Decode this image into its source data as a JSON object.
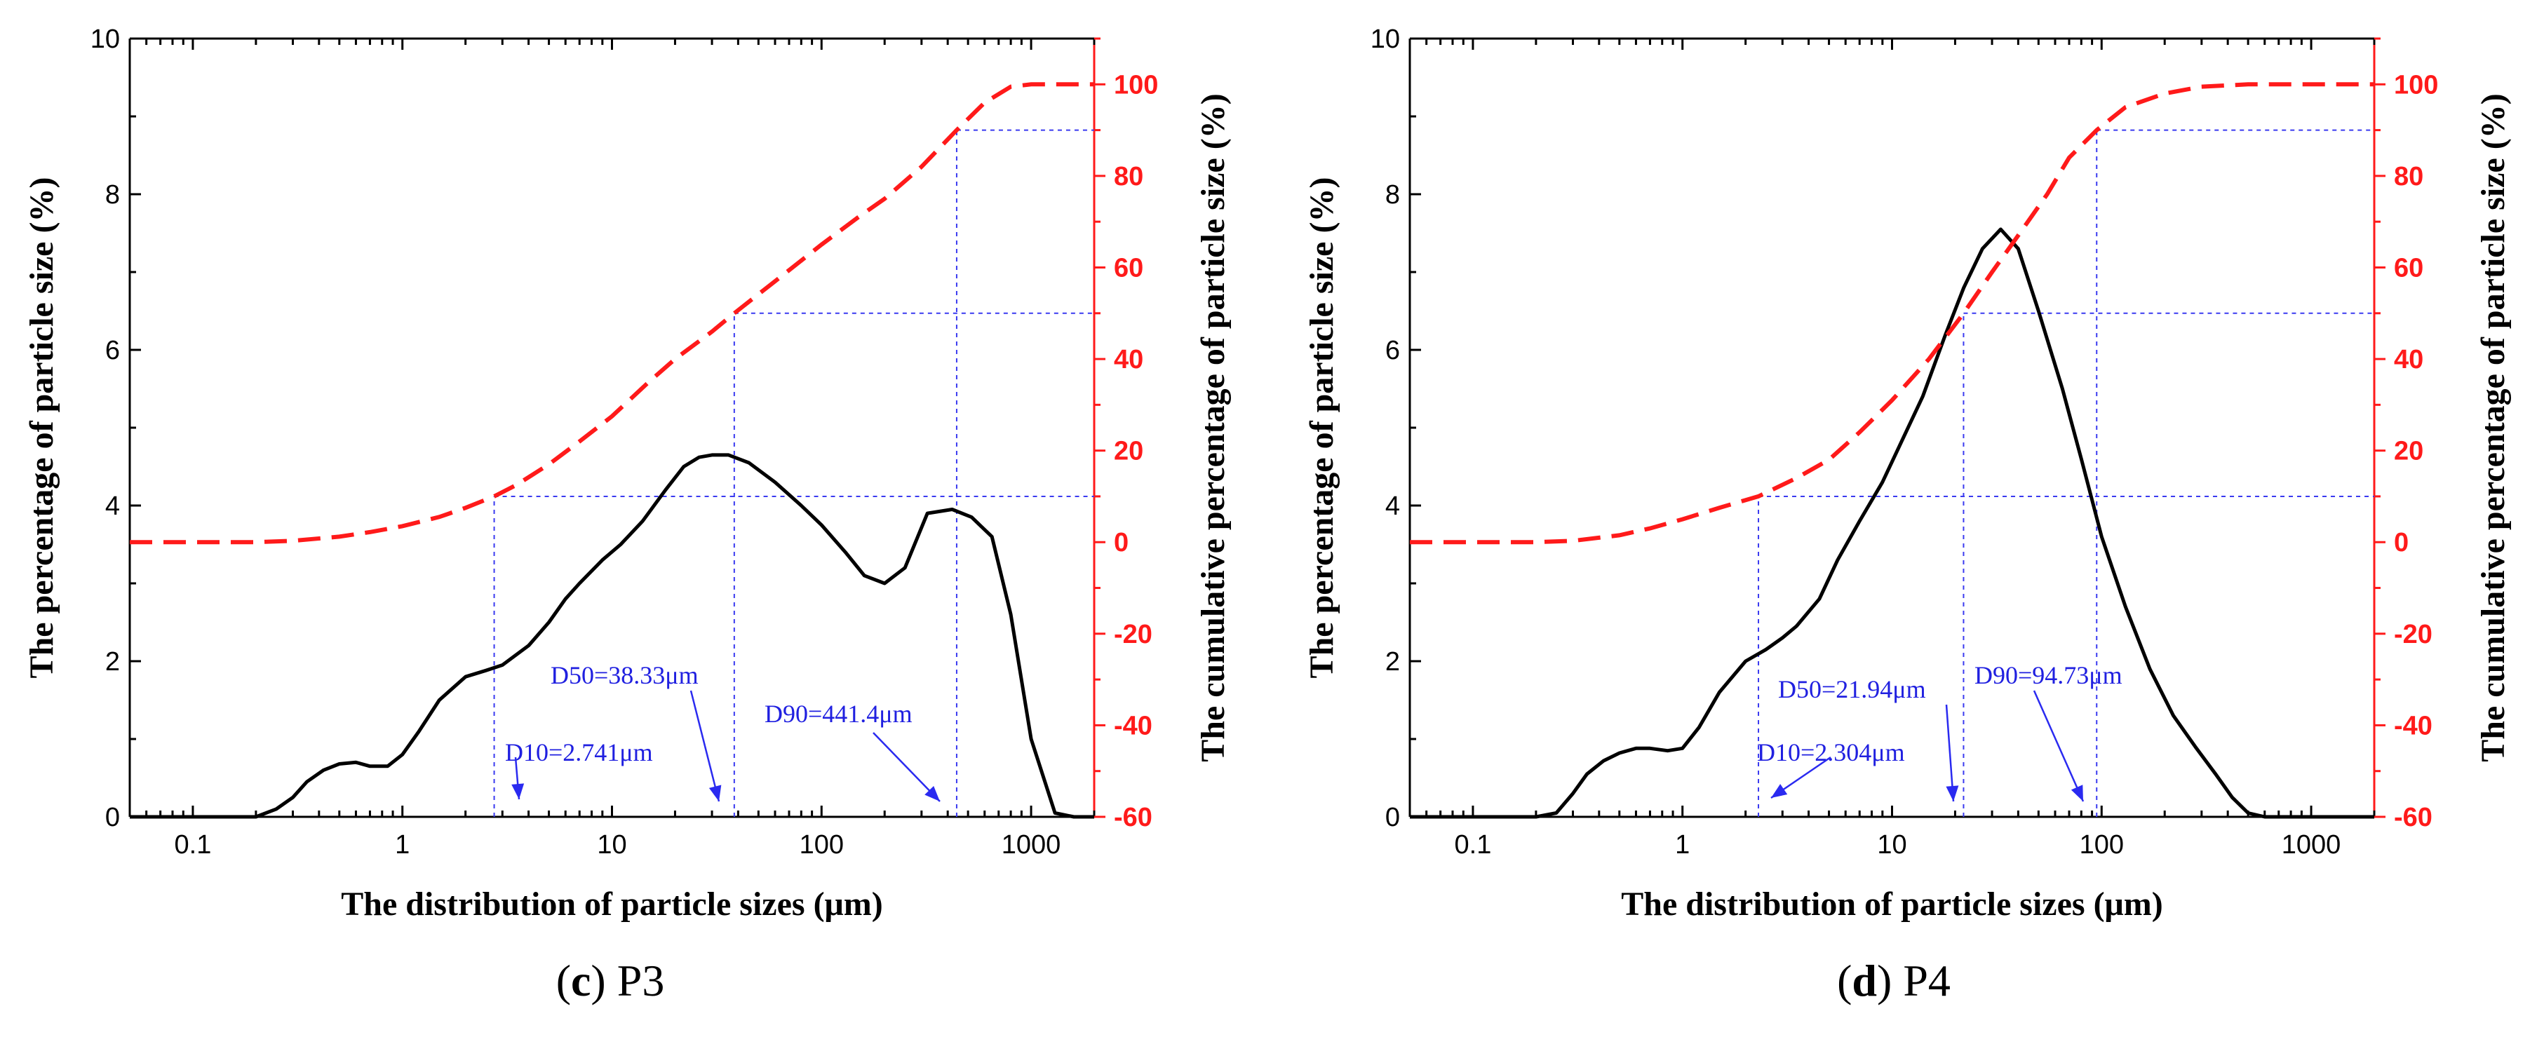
{
  "chart_data": [
    {
      "type": "line",
      "panel": "P3",
      "caption_letter": "c",
      "caption_text": "P3",
      "xlabel": "The distribution of particle sizes (μm)",
      "ylabel_left": "The percentage of particle size (%)",
      "ylabel_right": "The cumulative percentage of particle size (%)",
      "xscale": "log",
      "xlim": [
        0.05,
        2000
      ],
      "ylim_left": [
        0,
        10
      ],
      "ylim_right": [
        -60,
        110
      ],
      "x_ticks": [
        0.1,
        1,
        10,
        100,
        1000
      ],
      "x_tick_labels": [
        "0.1",
        "1",
        "10",
        "100",
        "1000"
      ],
      "y_left_ticks": [
        0,
        2,
        4,
        6,
        8,
        10
      ],
      "y_left_tick_labels": [
        "0",
        "2",
        "4",
        "6",
        "8",
        "10"
      ],
      "y_right_ticks": [
        -60,
        -40,
        -20,
        0,
        20,
        40,
        60,
        80,
        100
      ],
      "y_right_tick_labels": [
        "-60",
        "-40",
        "-20",
        "0",
        "20",
        "40",
        "60",
        "80",
        "100"
      ],
      "series": [
        {
          "name": "percentage",
          "axis": "left",
          "x": [
            0.05,
            0.2,
            0.25,
            0.3,
            0.35,
            0.42,
            0.5,
            0.6,
            0.7,
            0.85,
            1.0,
            1.2,
            1.5,
            2.0,
            2.5,
            3.0,
            4.0,
            5.0,
            6.0,
            7.0,
            9.0,
            11.0,
            14.0,
            18.0,
            22.0,
            26.0,
            30.0,
            36.0,
            45.0,
            60.0,
            80.0,
            100.0,
            130.0,
            160.0,
            200.0,
            250.0,
            320.0,
            420.0,
            520.0,
            650.0,
            800.0,
            1000.0,
            1300.0,
            1600.0,
            2000.0
          ],
          "values": [
            0,
            0,
            0.1,
            0.25,
            0.45,
            0.6,
            0.68,
            0.7,
            0.65,
            0.65,
            0.8,
            1.1,
            1.5,
            1.8,
            1.88,
            1.95,
            2.2,
            2.5,
            2.8,
            3.0,
            3.3,
            3.5,
            3.8,
            4.2,
            4.5,
            4.62,
            4.65,
            4.65,
            4.55,
            4.3,
            4.0,
            3.75,
            3.4,
            3.1,
            3.0,
            3.2,
            3.9,
            3.95,
            3.85,
            3.6,
            2.6,
            1.0,
            0.05,
            0,
            0
          ]
        },
        {
          "name": "cumulative",
          "axis": "right",
          "x": [
            0.05,
            0.1,
            0.2,
            0.3,
            0.5,
            0.7,
            1.0,
            1.5,
            2.0,
            2.741,
            3.5,
            5.0,
            7.0,
            10.0,
            15.0,
            20.0,
            30.0,
            38.33,
            60.0,
            100.0,
            150.0,
            200.0,
            300.0,
            441.4,
            600.0,
            800.0,
            1000.0,
            1300.0,
            2000.0
          ],
          "values": [
            0,
            0,
            0,
            0.3,
            1.2,
            2.2,
            3.5,
            5.5,
            7.5,
            10,
            12.5,
            17,
            22,
            27.5,
            35,
            40,
            46,
            50,
            57,
            65,
            71,
            75,
            82,
            90,
            96,
            99.5,
            100,
            100,
            100
          ]
        }
      ],
      "annotations": [
        {
          "label": "D10=2.741μm",
          "x": 2.741,
          "cum": 10
        },
        {
          "label": "D50=38.33μm",
          "x": 38.33,
          "cum": 50
        },
        {
          "label": "D90=441.4μm",
          "x": 441.4,
          "cum": 90
        }
      ]
    },
    {
      "type": "line",
      "panel": "P4",
      "caption_letter": "d",
      "caption_text": "P4",
      "xlabel": "The distribution of particle sizes (μm)",
      "ylabel_left": "The percentage of particle size (%)",
      "ylabel_right": "The cumulative percentage of particle size (%)",
      "xscale": "log",
      "xlim": [
        0.05,
        2000
      ],
      "ylim_left": [
        0,
        10
      ],
      "ylim_right": [
        -60,
        110
      ],
      "x_ticks": [
        0.1,
        1,
        10,
        100,
        1000
      ],
      "x_tick_labels": [
        "0.1",
        "1",
        "10",
        "100",
        "1000"
      ],
      "y_left_ticks": [
        0,
        2,
        4,
        6,
        8,
        10
      ],
      "y_left_tick_labels": [
        "0",
        "2",
        "4",
        "6",
        "8",
        "10"
      ],
      "y_right_ticks": [
        -60,
        -40,
        -20,
        0,
        20,
        40,
        60,
        80,
        100
      ],
      "y_right_tick_labels": [
        "-60",
        "-40",
        "-20",
        "0",
        "20",
        "40",
        "60",
        "80",
        "100"
      ],
      "series": [
        {
          "name": "percentage",
          "axis": "left",
          "x": [
            0.05,
            0.2,
            0.25,
            0.3,
            0.35,
            0.42,
            0.5,
            0.6,
            0.7,
            0.85,
            1.0,
            1.2,
            1.5,
            2.0,
            2.5,
            3.0,
            3.5,
            4.5,
            5.5,
            7.0,
            9.0,
            11.0,
            14.0,
            18.0,
            22.0,
            27.0,
            33.0,
            40.0,
            50.0,
            65.0,
            80.0,
            100.0,
            130.0,
            170.0,
            220.0,
            280.0,
            350.0,
            420.0,
            500.0,
            600.0,
            800.0,
            1000.0,
            2000.0
          ],
          "values": [
            0,
            0,
            0.05,
            0.3,
            0.55,
            0.72,
            0.82,
            0.88,
            0.88,
            0.85,
            0.88,
            1.15,
            1.6,
            2.0,
            2.15,
            2.3,
            2.45,
            2.8,
            3.3,
            3.8,
            4.3,
            4.8,
            5.4,
            6.2,
            6.8,
            7.3,
            7.55,
            7.3,
            6.5,
            5.5,
            4.6,
            3.6,
            2.7,
            1.9,
            1.3,
            0.9,
            0.55,
            0.25,
            0.05,
            0,
            0,
            0,
            0
          ]
        },
        {
          "name": "cumulative",
          "axis": "right",
          "x": [
            0.05,
            0.1,
            0.2,
            0.3,
            0.5,
            0.7,
            1.0,
            1.5,
            2.304,
            3.5,
            5.0,
            7.0,
            10.0,
            15.0,
            21.94,
            30.0,
            40.0,
            55.0,
            70.0,
            94.73,
            130.0,
            200.0,
            300.0,
            500.0,
            800.0,
            1000.0,
            2000.0
          ],
          "values": [
            0,
            0,
            0,
            0.3,
            1.5,
            3,
            5,
            7.5,
            10,
            14,
            18,
            24,
            31,
            40,
            50,
            59,
            67,
            76,
            84,
            90,
            95,
            98,
            99.5,
            100,
            100,
            100,
            100
          ]
        }
      ],
      "annotations": [
        {
          "label": "D10=2.304μm",
          "x": 2.304,
          "cum": 10
        },
        {
          "label": "D50=21.94μm",
          "x": 21.94,
          "cum": 50
        },
        {
          "label": "D90=94.73μm",
          "x": 94.73,
          "cum": 90
        }
      ]
    }
  ]
}
